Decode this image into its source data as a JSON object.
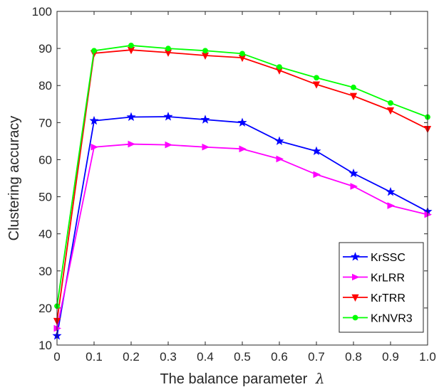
{
  "chart_data": {
    "type": "line",
    "xlabel": "The balance parameter",
    "xlabel_symbol": "λ",
    "ylabel": "Clustering accuracy",
    "xlim": [
      0,
      1.0
    ],
    "ylim": [
      10,
      100
    ],
    "xticks": [
      0,
      0.1,
      0.2,
      0.3,
      0.4,
      0.5,
      0.6,
      0.7,
      0.8,
      0.9,
      1.0
    ],
    "xtick_labels": [
      "0",
      "0.1",
      "0.2",
      "0.3",
      "0.4",
      "0.5",
      "0.6",
      "0.7",
      "0.8",
      "0.9",
      "1.0"
    ],
    "yticks": [
      10,
      20,
      30,
      40,
      50,
      60,
      70,
      80,
      90,
      100
    ],
    "ytick_labels": [
      "10",
      "20",
      "30",
      "40",
      "50",
      "60",
      "70",
      "80",
      "90",
      "100"
    ],
    "grid": false,
    "legend_position": "bottom-right",
    "x": [
      0,
      0.1,
      0.2,
      0.3,
      0.4,
      0.5,
      0.6,
      0.7,
      0.8,
      0.9,
      1.0
    ],
    "series": [
      {
        "name": "KrSSC",
        "color": "#0000ff",
        "marker": "star",
        "values": [
          12.5,
          70.5,
          71.5,
          71.6,
          70.8,
          70.0,
          65.0,
          62.3,
          56.3,
          51.3,
          46.0
        ]
      },
      {
        "name": "KrLRR",
        "color": "#ff00ff",
        "marker": "triangle-right",
        "values": [
          14.5,
          63.4,
          64.2,
          64.0,
          63.4,
          62.9,
          60.2,
          56.0,
          52.8,
          47.6,
          45.2
        ]
      },
      {
        "name": "KrTRR",
        "color": "#ff0000",
        "marker": "triangle-down",
        "values": [
          16.5,
          88.7,
          89.6,
          88.9,
          88.1,
          87.5,
          84.1,
          80.3,
          77.2,
          73.3,
          68.3
        ]
      },
      {
        "name": "KrNVR3",
        "color": "#00ff00",
        "marker": "circle",
        "values": [
          20.5,
          89.4,
          90.8,
          90.0,
          89.4,
          88.6,
          85.0,
          82.1,
          79.5,
          75.3,
          71.5
        ]
      }
    ]
  }
}
